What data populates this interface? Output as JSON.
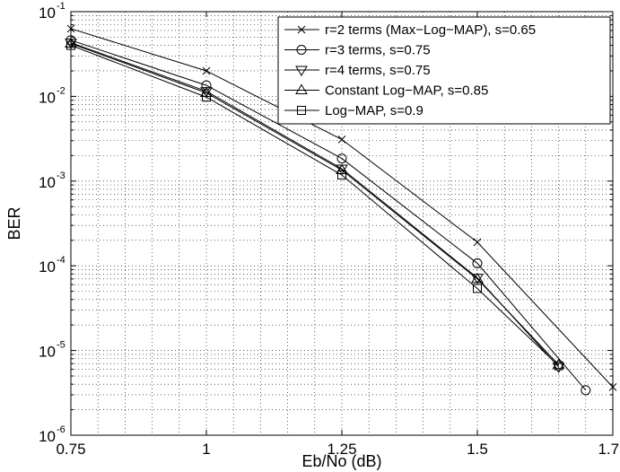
{
  "chart_data": {
    "type": "line",
    "title": "",
    "xlabel": "Eb/No (dB)",
    "ylabel": "BER",
    "xlim": [
      0.75,
      1.75
    ],
    "ylim": [
      1e-06,
      0.1
    ],
    "yscale": "log",
    "grid": true,
    "legend_position": "top-right",
    "x_ticks": [
      "0.75",
      "1",
      "1.25",
      "1.5",
      "1.75"
    ],
    "y_ticks": [
      {
        "base": "10",
        "exp": "-6"
      },
      {
        "base": "10",
        "exp": "-5"
      },
      {
        "base": "10",
        "exp": "-4"
      },
      {
        "base": "10",
        "exp": "-3"
      },
      {
        "base": "10",
        "exp": "-2"
      },
      {
        "base": "10",
        "exp": "-1"
      }
    ],
    "series": [
      {
        "name": "r=2 terms (Max−Log−MAP), s=0.65",
        "marker": "x",
        "x": [
          0.75,
          1.0,
          1.25,
          1.5,
          1.75
        ],
        "y": [
          0.063,
          0.02,
          0.0031,
          0.00019,
          3.7e-06
        ]
      },
      {
        "name": "r=3 terms, s=0.75",
        "marker": "circle",
        "x": [
          0.75,
          1.0,
          1.25,
          1.5,
          1.7
        ],
        "y": [
          0.046,
          0.0135,
          0.00185,
          0.000107,
          3.4e-06
        ]
      },
      {
        "name": "r=4 terms, s=0.75",
        "marker": "triangle-down",
        "x": [
          0.75,
          1.0,
          1.25,
          1.5,
          1.65
        ],
        "y": [
          0.043,
          0.0115,
          0.0014,
          7.2e-05,
          6.4e-06
        ]
      },
      {
        "name": "Constant Log−MAP, s=0.85",
        "marker": "triangle-up",
        "x": [
          0.75,
          1.0,
          1.25,
          1.5,
          1.65
        ],
        "y": [
          0.042,
          0.011,
          0.00135,
          7e-05,
          6.8e-06
        ]
      },
      {
        "name": "Log−MAP, s=0.9",
        "marker": "square",
        "x": [
          0.75,
          1.0,
          1.25,
          1.5,
          1.65
        ],
        "y": [
          0.04,
          0.0098,
          0.00118,
          5.4e-05,
          6.6e-06
        ]
      }
    ]
  }
}
